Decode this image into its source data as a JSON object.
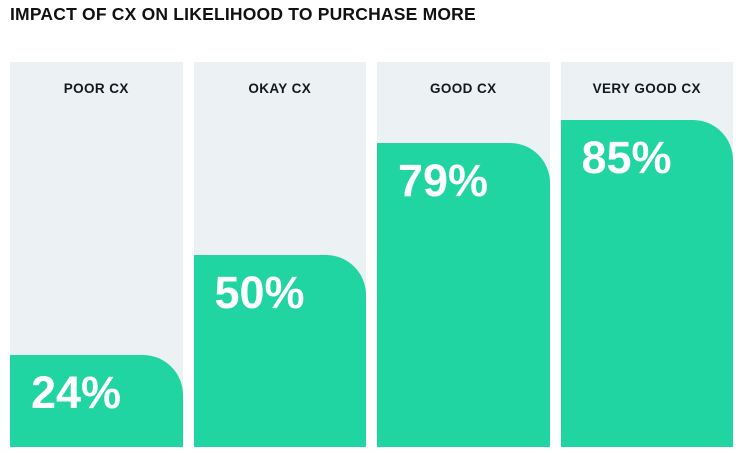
{
  "title": "IMPACT OF CX ON LIKELIHOOD TO PURCHASE MORE",
  "colors": {
    "bar": "#21D5A3",
    "column_bg": "#ECF1F3",
    "title_text": "#111111",
    "label_text": "#15171C",
    "value_text": "#FFFFFF"
  },
  "chart_data": {
    "type": "bar",
    "title": "IMPACT OF CX ON LIKELIHOOD TO PURCHASE MORE",
    "categories": [
      "POOR CX",
      "OKAY CX",
      "GOOD CX",
      "VERY GOOD CX"
    ],
    "values": [
      24,
      50,
      79,
      85
    ],
    "value_labels": [
      "24%",
      "50%",
      "79%",
      "85%"
    ],
    "xlabel": "",
    "ylabel": "",
    "ylim": [
      0,
      100
    ],
    "grid": false,
    "legend": false,
    "orientation": "vertical",
    "value_label_position": "inside-top-left",
    "category_label_position": "above-bars"
  }
}
